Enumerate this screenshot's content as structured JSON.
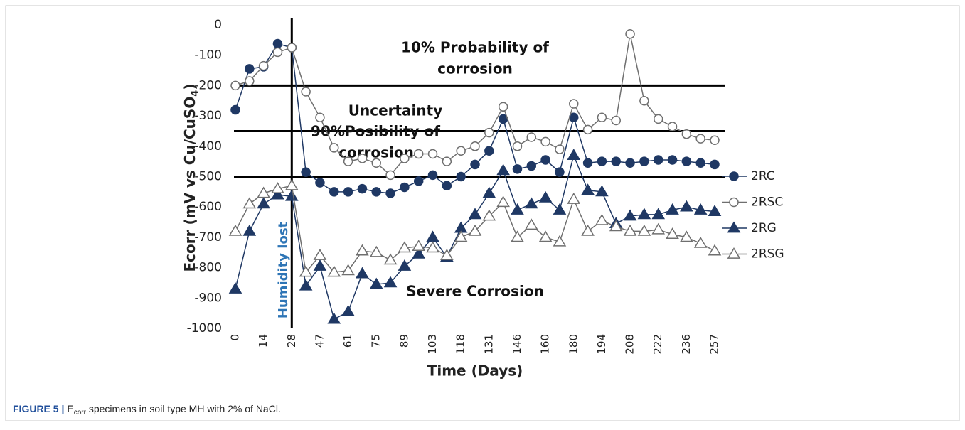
{
  "chart_data": {
    "type": "line",
    "ylabel": [
      "Ecorr  (mV vs  Cu/CuSO",
      "4",
      ")"
    ],
    "xlabel": "Time (Days)",
    "categories": [
      0,
      null,
      14,
      null,
      28,
      null,
      47,
      null,
      61,
      null,
      75,
      null,
      89,
      null,
      103,
      null,
      118,
      null,
      131,
      null,
      146,
      null,
      160,
      null,
      180,
      null,
      194,
      null,
      208,
      null,
      222,
      null,
      236,
      null,
      257
    ],
    "series": [
      {
        "name": "2RC",
        "color": "#1f3864",
        "marker": "circle",
        "filled": true,
        "values": [
          -280,
          -145,
          -138,
          -62,
          -75,
          -485,
          -520,
          -550,
          -550,
          -540,
          -550,
          -555,
          -535,
          -515,
          -495,
          -530,
          -500,
          -460,
          -415,
          -310,
          -475,
          -465,
          -445,
          -485,
          -305,
          -455,
          -450,
          -450,
          -455,
          -450,
          -445,
          -445,
          -450,
          -455,
          -460
        ]
      },
      {
        "name": "2RSC",
        "color": "#6f6f6f",
        "marker": "circle",
        "filled": false,
        "values": [
          -200,
          -185,
          -135,
          -90,
          -75,
          -220,
          -305,
          -405,
          -450,
          -440,
          -455,
          -495,
          -440,
          -425,
          -425,
          -450,
          -415,
          -400,
          -355,
          -270,
          -400,
          -370,
          -385,
          -410,
          -260,
          -345,
          -305,
          -315,
          -30,
          -250,
          -310,
          -335,
          -360,
          -375,
          -380
        ]
      },
      {
        "name": "2RG",
        "color": "#1f3864",
        "marker": "triangle",
        "filled": true,
        "values": [
          -870,
          -680,
          -590,
          -560,
          -565,
          -860,
          -795,
          -970,
          -945,
          -820,
          -855,
          -850,
          -795,
          -755,
          -700,
          -765,
          -670,
          -625,
          -555,
          -480,
          -610,
          -590,
          -570,
          -610,
          -430,
          -545,
          -550,
          -655,
          -630,
          -625,
          -625,
          -610,
          -600,
          -610,
          -615
        ]
      },
      {
        "name": "2RSG",
        "color": "#6f6f6f",
        "marker": "triangle",
        "filled": false,
        "values": [
          -680,
          -590,
          -555,
          -540,
          -530,
          -815,
          -760,
          -815,
          -810,
          -745,
          -750,
          -775,
          -735,
          -730,
          -735,
          -760,
          -700,
          -680,
          -630,
          -585,
          -700,
          -660,
          -700,
          -715,
          -575,
          -680,
          -645,
          -665,
          -680,
          -680,
          -675,
          -690,
          -700,
          -720,
          -745
        ]
      }
    ],
    "ylim": [
      -1000,
      0
    ],
    "yticks": [
      0,
      -100,
      -200,
      -300,
      -400,
      -500,
      -600,
      -700,
      -800,
      -900,
      -1000
    ],
    "hlines": [
      -200,
      -350,
      -500
    ],
    "vline_at": 28,
    "annotations": [
      "10% Probability of",
      "corrosion",
      "Uncertainty",
      "90%Posibility of",
      "corrosion",
      "Severe Corrosion",
      "Humidity lost"
    ],
    "caption": [
      "FIGURE 5 |",
      "E",
      "corr",
      " specimens in soil type MH with 2% of NaCl."
    ]
  }
}
